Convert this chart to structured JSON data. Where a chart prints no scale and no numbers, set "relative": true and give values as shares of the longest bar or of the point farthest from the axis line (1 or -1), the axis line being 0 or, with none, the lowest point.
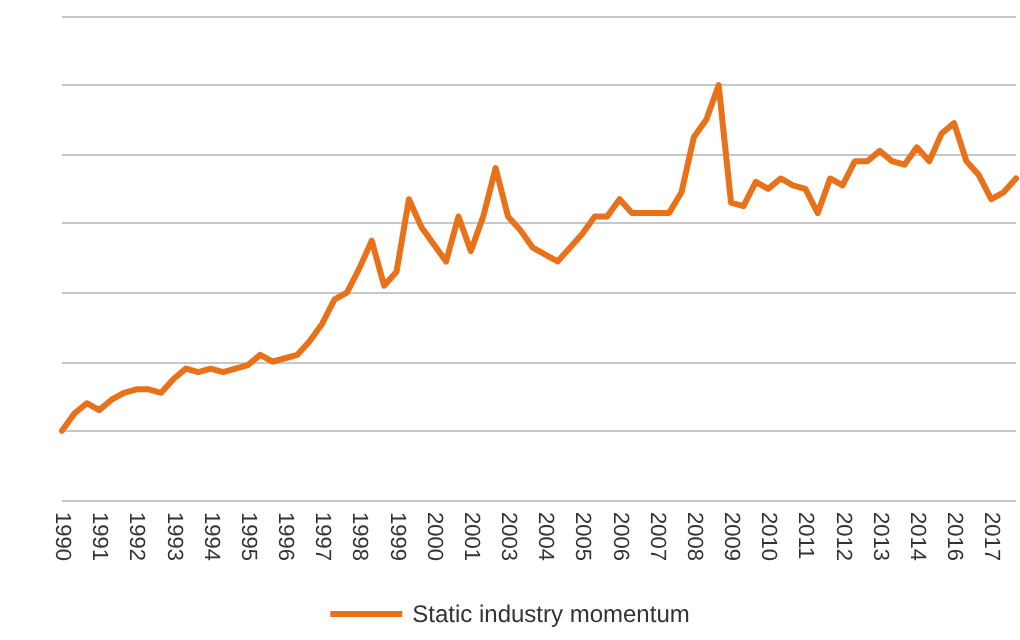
{
  "chart_data": {
    "type": "line",
    "relative": true,
    "grid": "y",
    "legend": "bottom",
    "marker": "none",
    "line_style": "solid",
    "categories": [
      "1990",
      null,
      null,
      "1991",
      null,
      null,
      "1992",
      null,
      null,
      "1993",
      null,
      null,
      "1994",
      null,
      null,
      "1995",
      null,
      null,
      "1996",
      null,
      null,
      "1997",
      null,
      null,
      "1998",
      null,
      null,
      "1999",
      null,
      null,
      "2000",
      null,
      null,
      "2001",
      null,
      null,
      "2003",
      null,
      null,
      "2004",
      null,
      null,
      "2005",
      null,
      null,
      "2006",
      null,
      null,
      "2007",
      null,
      null,
      "2008",
      null,
      null,
      "2009",
      null,
      null,
      "2010",
      null,
      null,
      "2011",
      null,
      null,
      "2012",
      null,
      null,
      "2013",
      null,
      null,
      "2014",
      null,
      null,
      "2016",
      null,
      null,
      "2017",
      null,
      null
    ],
    "series": [
      {
        "name": "Static industry momentum",
        "color": "#e8711a",
        "values": [
          0,
          0.05,
          0.08,
          0.06,
          0.09,
          0.11,
          0.12,
          0.12,
          0.11,
          0.15,
          0.18,
          0.17,
          0.18,
          0.17,
          0.18,
          0.19,
          0.22,
          0.2,
          0.21,
          0.22,
          0.26,
          0.31,
          0.38,
          0.4,
          0.47,
          0.55,
          0.42,
          0.46,
          0.67,
          0.59,
          0.54,
          0.49,
          0.62,
          0.52,
          0.62,
          0.76,
          0.62,
          0.58,
          0.53,
          0.51,
          0.49,
          0.53,
          0.57,
          0.62,
          0.62,
          0.67,
          0.63,
          0.63,
          0.63,
          0.63,
          0.69,
          0.85,
          0.9,
          1,
          0.66,
          0.65,
          0.72,
          0.7,
          0.73,
          0.71,
          0.7,
          0.63,
          0.73,
          0.71,
          0.78,
          0.78,
          0.81,
          0.78,
          0.77,
          0.82,
          0.78,
          0.86,
          0.89,
          0.78,
          0.74,
          0.67,
          0.69,
          0.73
        ]
      }
    ]
  }
}
